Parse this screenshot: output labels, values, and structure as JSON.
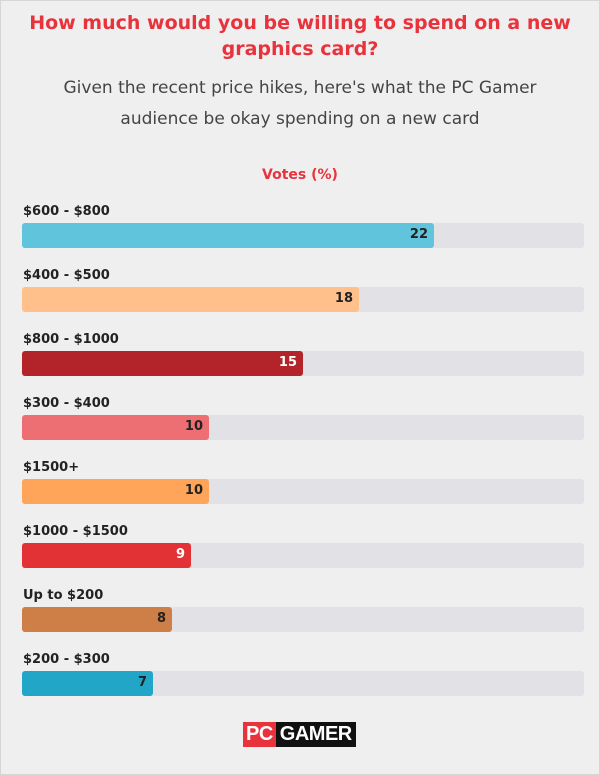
{
  "header": {
    "title": "How much would you be willing to spend on a new graphics card?",
    "subtitle": "Given the recent price hikes, here's what the PC Gamer audience be okay spending on a new card"
  },
  "logo": {
    "part1": "PC",
    "part2": "GAMER"
  },
  "colors": {
    "title": "#e8323c",
    "track": "#e2e2e6"
  },
  "chart_data": {
    "type": "bar",
    "orientation": "horizontal",
    "title": "How much would you be willing to spend on a new graphics card?",
    "subtitle": "Given the recent price hikes, here's what the PC Gamer audience be okay spending on a new card",
    "ylabel": "Votes (%)",
    "xlim": [
      0,
      30
    ],
    "categories": [
      "$600 - $800",
      "$400 - $500",
      "$800 - $1000",
      "$300 - $400",
      "$1500+",
      "$1000 - $1500",
      "Up to $200",
      "$200 - $300"
    ],
    "values": [
      22,
      18,
      15,
      10,
      10,
      9,
      8,
      7
    ],
    "bar_colors": [
      "#5fc4dc",
      "#ffc08c",
      "#b2232a",
      "#ee6f73",
      "#ffa55a",
      "#e23236",
      "#cd7f47",
      "#22a6c8"
    ],
    "label_colors": [
      "#222222",
      "#222222",
      "#ffffff",
      "#222222",
      "#222222",
      "#ffffff",
      "#222222",
      "#222222"
    ]
  }
}
